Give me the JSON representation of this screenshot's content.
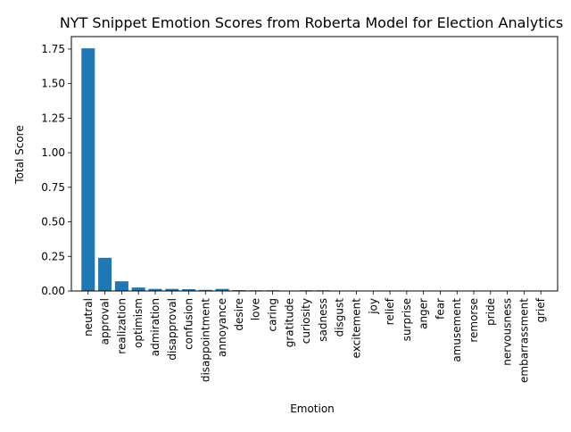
{
  "chart_data": {
    "type": "bar",
    "title": "NYT Snippet Emotion Scores from Roberta Model for Election Analytics",
    "xlabel": "Emotion",
    "ylabel": "Total Score",
    "ylim": [
      0,
      1.84
    ],
    "yticks": [
      "0.00",
      "0.25",
      "0.50",
      "0.75",
      "1.00",
      "1.25",
      "1.50",
      "1.75"
    ],
    "grid": false,
    "legend": "none",
    "bar_color": "#1f77b4",
    "categories": [
      "neutral",
      "approval",
      "realization",
      "optimism",
      "admiration",
      "disapproval",
      "confusion",
      "disappointment",
      "annoyance",
      "desire",
      "love",
      "caring",
      "gratitude",
      "curiosity",
      "sadness",
      "disgust",
      "excitement",
      "joy",
      "relief",
      "surprise",
      "anger",
      "fear",
      "amusement",
      "remorse",
      "pride",
      "nervousness",
      "embarrassment",
      "grief"
    ],
    "values": [
      1.755,
      0.24,
      0.07,
      0.025,
      0.015,
      0.015,
      0.013,
      0.008,
      0.015,
      0.006,
      0.005,
      0.005,
      0.003,
      0.005,
      0.005,
      0.002,
      0.002,
      0.002,
      0.002,
      0.001,
      0.001,
      0.001,
      0.001,
      0.001,
      0.001,
      0.001,
      0.001,
      0.001
    ]
  }
}
